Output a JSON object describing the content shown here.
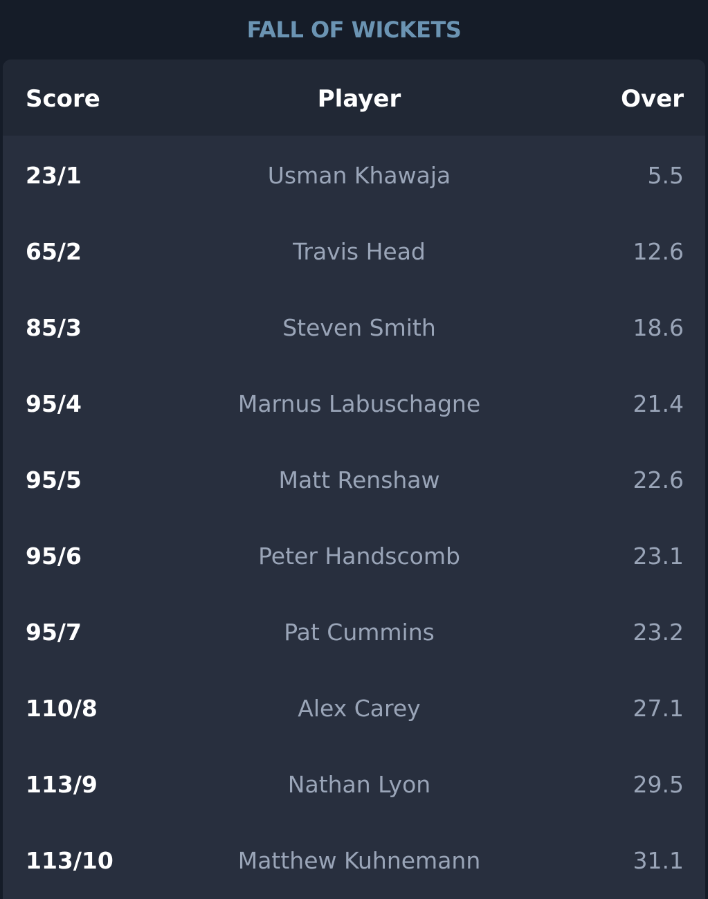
{
  "title": "FALL OF WICKETS",
  "table": {
    "headers": {
      "score": "Score",
      "player": "Player",
      "over": "Over"
    },
    "rows": [
      {
        "score": "23/1",
        "player": "Usman Khawaja",
        "over": "5.5"
      },
      {
        "score": "65/2",
        "player": "Travis Head",
        "over": "12.6"
      },
      {
        "score": "85/3",
        "player": "Steven Smith",
        "over": "18.6"
      },
      {
        "score": "95/4",
        "player": "Marnus Labuschagne",
        "over": "21.4"
      },
      {
        "score": "95/5",
        "player": "Matt Renshaw",
        "over": "22.6"
      },
      {
        "score": "95/6",
        "player": "Peter Handscomb",
        "over": "23.1"
      },
      {
        "score": "95/7",
        "player": "Pat Cummins",
        "over": "23.2"
      },
      {
        "score": "110/8",
        "player": "Alex Carey",
        "over": "27.1"
      },
      {
        "score": "113/9",
        "player": "Nathan Lyon",
        "over": "29.5"
      },
      {
        "score": "113/10",
        "player": "Matthew Kuhnemann",
        "over": "31.1"
      }
    ]
  },
  "colors": {
    "background": "#151c28",
    "card": "#282f3e",
    "header_row": "#212835",
    "title": "#6b94b3",
    "score_text": "#ffffff",
    "muted_text": "#9aa5b8"
  }
}
